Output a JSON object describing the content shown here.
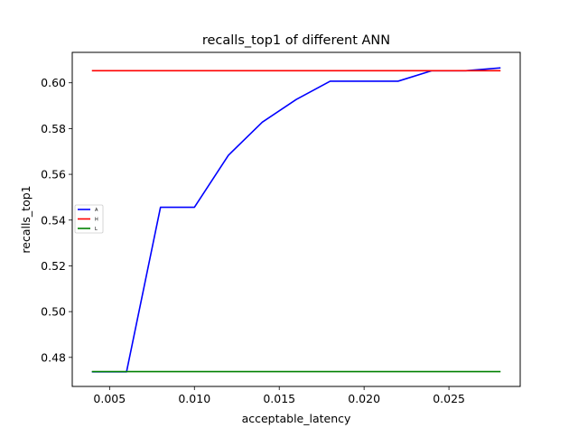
{
  "chart_data": {
    "type": "line",
    "title": "recalls_top1 of different ANN",
    "xlabel": "acceptable_latency",
    "ylabel": "recalls_top1",
    "xlim": [
      0.0028,
      0.0292
    ],
    "ylim": [
      0.4673,
      0.6133
    ],
    "x_ticks": [
      0.005,
      0.01,
      0.015,
      0.02,
      0.025
    ],
    "x_tick_labels": [
      "0.005",
      "0.010",
      "0.015",
      "0.020",
      "0.025"
    ],
    "y_ticks": [
      0.48,
      0.5,
      0.52,
      0.54,
      0.56,
      0.58,
      0.6
    ],
    "y_tick_labels": [
      "0.48",
      "0.50",
      "0.52",
      "0.54",
      "0.56",
      "0.58",
      "0.60"
    ],
    "grid": false,
    "legend_placement": "center-left",
    "x": [
      0.004,
      0.006,
      0.008,
      0.01,
      0.012,
      0.014,
      0.016,
      0.018,
      0.02,
      0.022,
      0.024,
      0.026,
      0.028
    ],
    "series": [
      {
        "name": "A",
        "color": "#0000ff",
        "values": [
          0.4737,
          0.4737,
          0.5456,
          0.5456,
          0.5683,
          0.5828,
          0.5927,
          0.6007,
          0.6007,
          0.6007,
          0.6053,
          0.6053,
          0.6065
        ]
      },
      {
        "name": "H",
        "color": "#ff0000",
        "values": [
          0.6053,
          0.6053,
          0.6053,
          0.6053,
          0.6053,
          0.6053,
          0.6053,
          0.6053,
          0.6053,
          0.6053,
          0.6053,
          0.6053,
          0.6053
        ]
      },
      {
        "name": "L",
        "color": "#008000",
        "values": [
          0.4738,
          0.4738,
          0.4738,
          0.4738,
          0.4738,
          0.4738,
          0.4738,
          0.4738,
          0.4738,
          0.4738,
          0.4738,
          0.4738,
          0.4738
        ]
      }
    ]
  }
}
